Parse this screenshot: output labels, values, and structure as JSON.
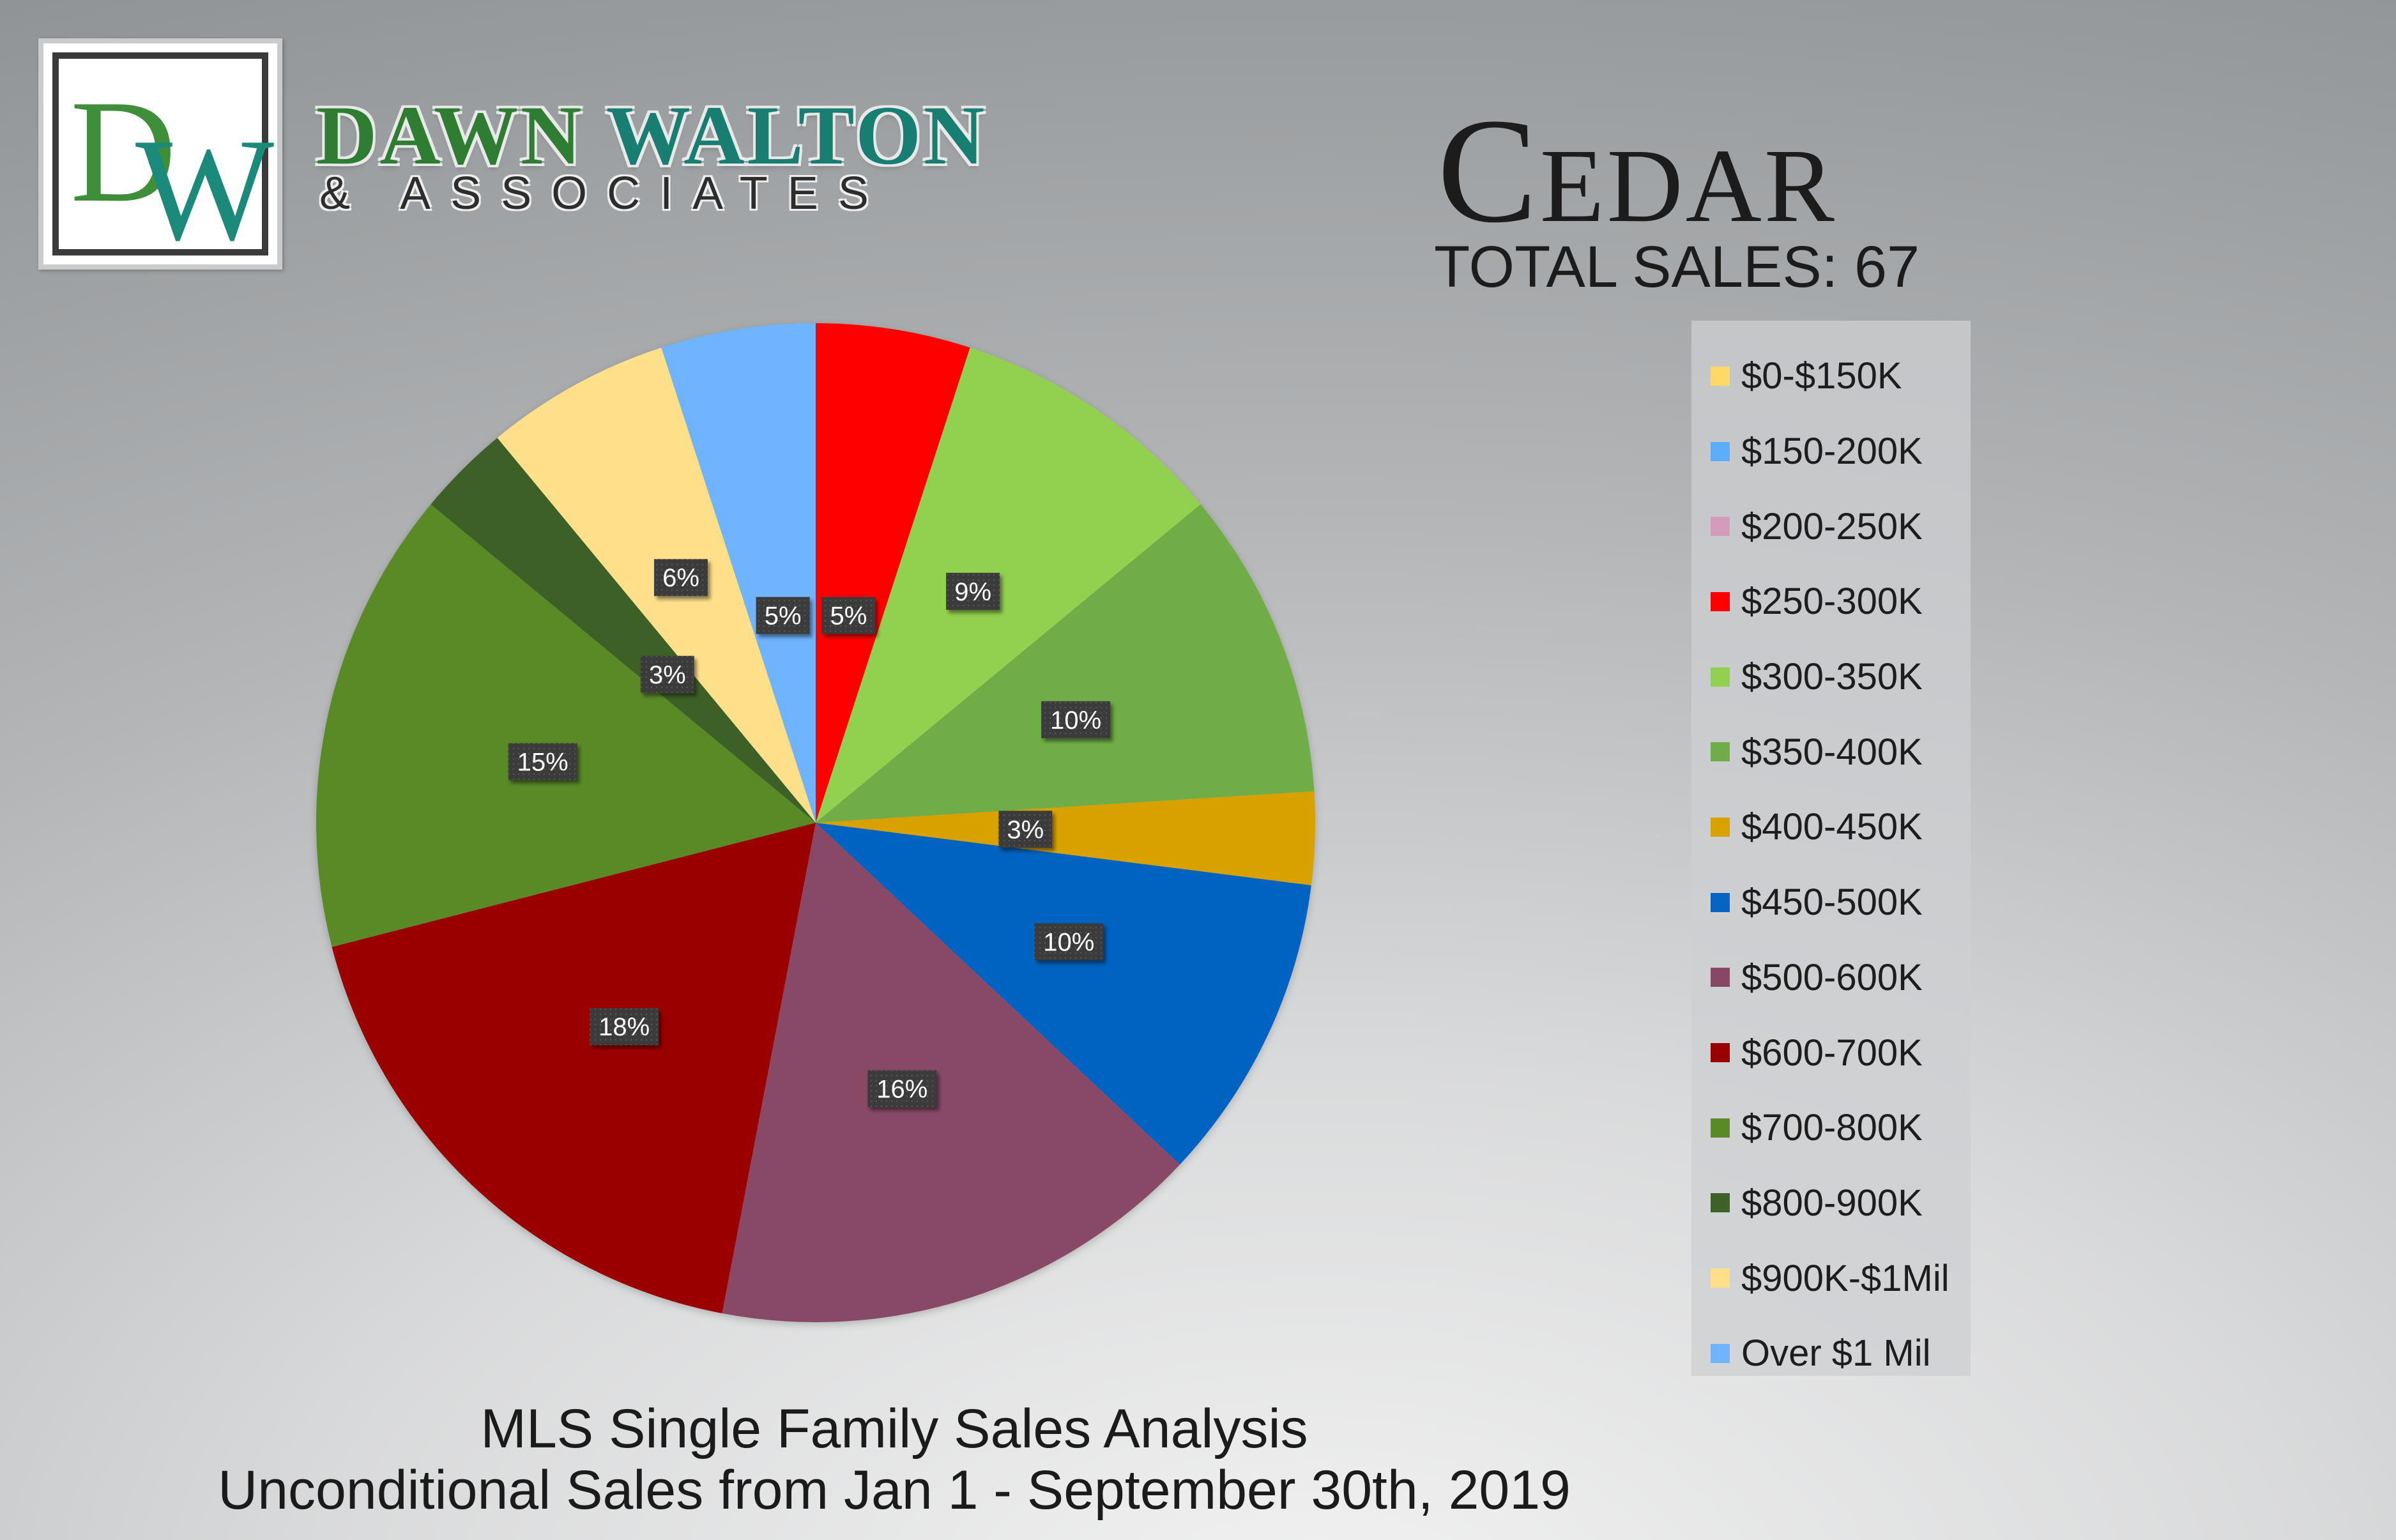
{
  "brand": {
    "logo_d": "D",
    "logo_w": "W",
    "name_part1": "DAWN",
    "name_part2": "WALTON",
    "sub": "& ASSOCIATES"
  },
  "header": {
    "area": "Cedar",
    "total_sales": "TOTAL SALES: 67"
  },
  "footer": {
    "line1": "MLS Single Family Sales Analysis",
    "line2": "Unconditional Sales from Jan 1 - September 30th, 2019"
  },
  "chart_data": {
    "type": "pie",
    "title": "Cedar",
    "legend_position": "right",
    "slices": [
      {
        "label": "$250-300K",
        "value": 5,
        "display": "5%",
        "color": "#ff0000"
      },
      {
        "label": "$300-350K",
        "value": 9,
        "display": "9%",
        "color": "#92d050"
      },
      {
        "label": "$350-400K",
        "value": 10,
        "display": "10%",
        "color": "#70ad47"
      },
      {
        "label": "$400-450K",
        "value": 3,
        "display": "3%",
        "color": "#d9a100"
      },
      {
        "label": "$450-500K",
        "value": 10,
        "display": "10%",
        "color": "#0563c1"
      },
      {
        "label": "$500-600K",
        "value": 16,
        "display": "16%",
        "color": "#874866"
      },
      {
        "label": "$600-700K",
        "value": 18,
        "display": "18%",
        "color": "#9b0000"
      },
      {
        "label": "$700-800K",
        "value": 15,
        "display": "15%",
        "color": "#5a8a26"
      },
      {
        "label": "$800-900K",
        "value": 3,
        "display": "3%",
        "color": "#3e6127"
      },
      {
        "label": "$900K-$1Mil",
        "value": 6,
        "display": "6%",
        "color": "#ffe08a"
      },
      {
        "label": "Over $1 Mil",
        "value": 5,
        "display": "5%",
        "color": "#6eb4ff"
      }
    ],
    "legend": [
      {
        "label": "$0-$150K",
        "color": "#ffd966"
      },
      {
        "label": "$150-200K",
        "color": "#5aaefc"
      },
      {
        "label": "$200-250K",
        "color": "#d59bbb"
      },
      {
        "label": "$250-300K",
        "color": "#ff0000"
      },
      {
        "label": "$300-350K",
        "color": "#92d050"
      },
      {
        "label": "$350-400K",
        "color": "#70ad47"
      },
      {
        "label": "$400-450K",
        "color": "#d9a100"
      },
      {
        "label": "$450-500K",
        "color": "#0563c1"
      },
      {
        "label": "$500-600K",
        "color": "#874866"
      },
      {
        "label": "$600-700K",
        "color": "#9b0000"
      },
      {
        "label": "$700-800K",
        "color": "#5a8a26"
      },
      {
        "label": "$800-900K",
        "color": "#3e6127"
      },
      {
        "label": "$900K-$1Mil",
        "color": "#ffe08a"
      },
      {
        "label": "Over $1 Mil",
        "color": "#6eb4ff"
      }
    ]
  }
}
